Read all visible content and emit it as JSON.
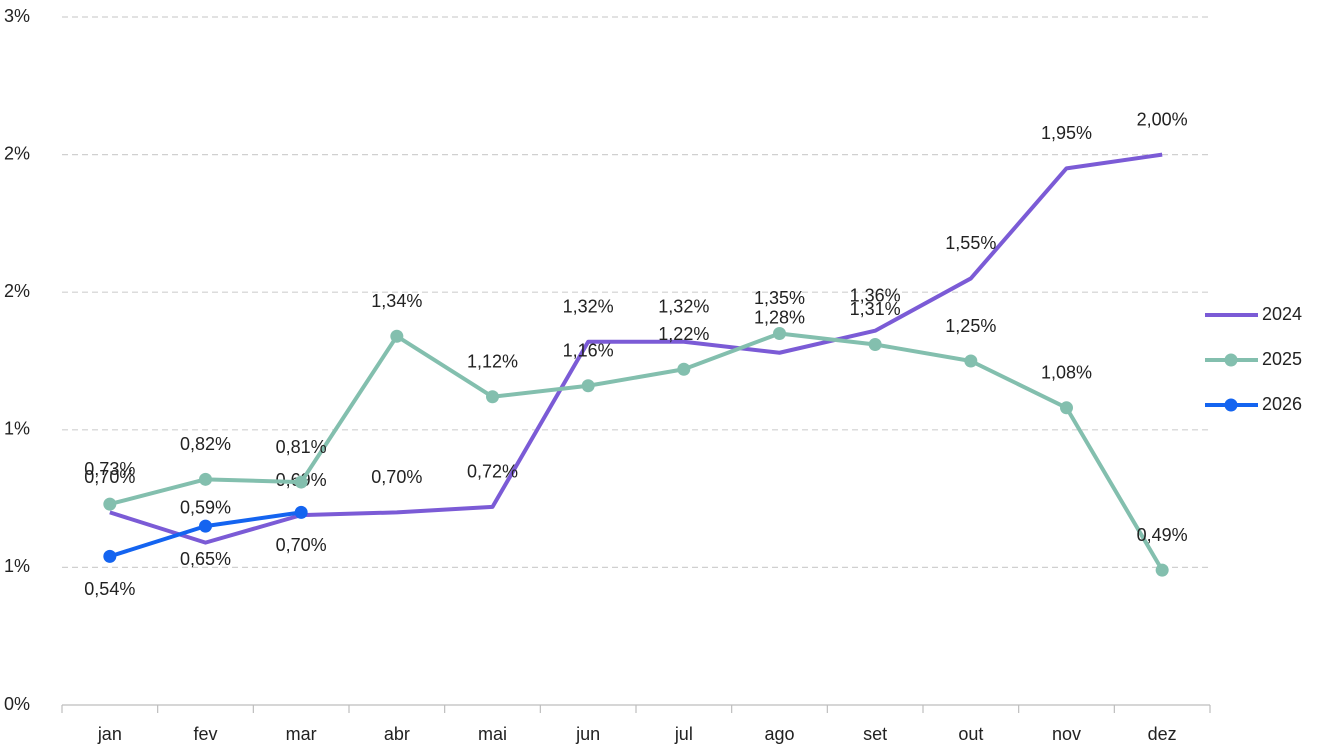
{
  "chart_data": {
    "type": "line",
    "categories": [
      "jan",
      "fev",
      "mar",
      "abr",
      "mai",
      "jun",
      "jul",
      "ago",
      "set",
      "out",
      "nov",
      "dez"
    ],
    "ylim": [
      0,
      2.5
    ],
    "yticks": [
      {
        "value": 0,
        "label": "0%"
      },
      {
        "value": 0.5,
        "label": "1%"
      },
      {
        "value": 1.0,
        "label": "1%"
      },
      {
        "value": 1.5,
        "label": "2%"
      },
      {
        "value": 2.0,
        "label": "2%"
      },
      {
        "value": 2.5,
        "label": "3%"
      }
    ],
    "grid": true,
    "legend": "right",
    "series": [
      {
        "name": "2024",
        "color": "#7b5bd6",
        "marker": false,
        "values": [
          0.7,
          0.59,
          0.69,
          0.7,
          0.72,
          1.32,
          1.32,
          1.28,
          1.36,
          1.55,
          1.95,
          2.0
        ],
        "value_labels": [
          "0,70%",
          "0,59%",
          "0,69%",
          "0,70%",
          "0,72%",
          "1,32%",
          "1,32%",
          "1,28%",
          "1,36%",
          "1,55%",
          "1,95%",
          "2,00%"
        ]
      },
      {
        "name": "2025",
        "color": "#83bfae",
        "marker": true,
        "values": [
          0.73,
          0.82,
          0.81,
          1.34,
          1.12,
          1.16,
          1.22,
          1.35,
          1.31,
          1.25,
          1.08,
          0.49
        ],
        "value_labels": [
          "0,73%",
          "0,82%",
          "0,81%",
          "1,34%",
          "1,12%",
          "1,16%",
          "1,22%",
          "1,35%",
          "1,31%",
          "1,25%",
          "1,08%",
          "0,49%"
        ]
      },
      {
        "name": "2026",
        "color": "#1464f0",
        "marker": true,
        "values": [
          0.54,
          0.65,
          0.7,
          null,
          null,
          null,
          null,
          null,
          null,
          null,
          null,
          null
        ],
        "value_labels": [
          "0,54%",
          "0,65%",
          "0,70%",
          null,
          null,
          null,
          null,
          null,
          null,
          null,
          null,
          null
        ]
      }
    ]
  }
}
